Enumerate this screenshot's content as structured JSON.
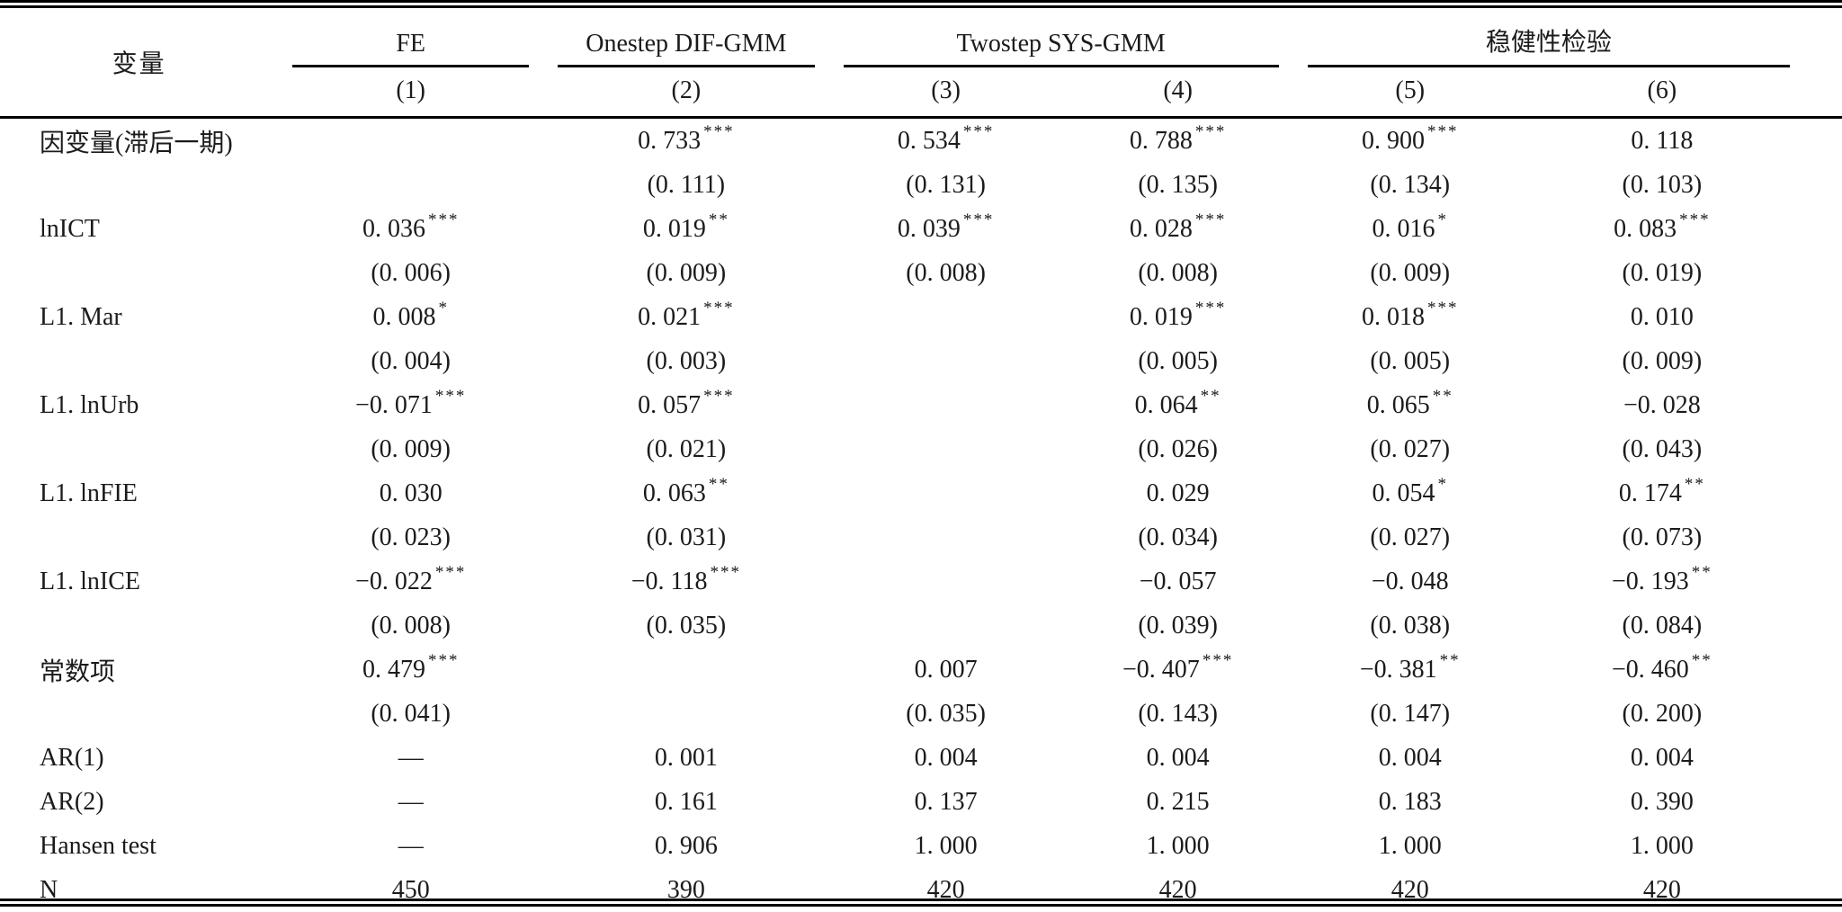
{
  "table": {
    "top_header": {
      "variable_label": "变量",
      "groups": [
        {
          "label": "FE",
          "span": 1
        },
        {
          "label": "Onestep DIF-GMM",
          "span": 1
        },
        {
          "label": "Twostep SYS-GMM",
          "span": 2
        },
        {
          "label": "稳健性检验",
          "span": 2
        }
      ],
      "column_numbers": [
        "(1)",
        "(2)",
        "(3)",
        "(4)",
        "(5)",
        "(6)"
      ]
    },
    "rows": [
      {
        "label": "因变量(滞后一期)",
        "type": "coef",
        "values": [
          "",
          "0. 733***",
          "0. 534***",
          "0. 788***",
          "0. 900***",
          "0. 118"
        ]
      },
      {
        "label": "",
        "type": "se",
        "values": [
          "",
          "(0. 111)",
          "(0. 131)",
          "(0. 135)",
          "(0. 134)",
          "(0. 103)"
        ]
      },
      {
        "label": "lnICT",
        "type": "coef",
        "values": [
          "0. 036***",
          "0. 019**",
          "0. 039***",
          "0. 028***",
          "0. 016*",
          "0. 083***"
        ]
      },
      {
        "label": "",
        "type": "se",
        "values": [
          "(0. 006)",
          "(0. 009)",
          "(0. 008)",
          "(0. 008)",
          "(0. 009)",
          "(0. 019)"
        ]
      },
      {
        "label": "L1. Mar",
        "type": "coef",
        "values": [
          "0. 008*",
          "0. 021***",
          "",
          "0. 019***",
          "0. 018***",
          "0. 010"
        ]
      },
      {
        "label": "",
        "type": "se",
        "values": [
          "(0. 004)",
          "(0. 003)",
          "",
          "(0. 005)",
          "(0. 005)",
          "(0. 009)"
        ]
      },
      {
        "label": "L1. lnUrb",
        "type": "coef",
        "values": [
          "−0. 071***",
          "0. 057***",
          "",
          "0. 064**",
          "0. 065**",
          "−0. 028"
        ]
      },
      {
        "label": "",
        "type": "se",
        "values": [
          "(0. 009)",
          "(0. 021)",
          "",
          "(0. 026)",
          "(0. 027)",
          "(0. 043)"
        ]
      },
      {
        "label": "L1. lnFIE",
        "type": "coef",
        "values": [
          "0. 030",
          "0. 063**",
          "",
          "0. 029",
          "0. 054*",
          "0. 174**"
        ]
      },
      {
        "label": "",
        "type": "se",
        "values": [
          "(0. 023)",
          "(0. 031)",
          "",
          "(0. 034)",
          "(0. 027)",
          "(0. 073)"
        ]
      },
      {
        "label": "L1. lnICE",
        "type": "coef",
        "values": [
          "−0. 022***",
          "−0. 118***",
          "",
          "−0. 057",
          "−0. 048",
          "−0. 193**"
        ]
      },
      {
        "label": "",
        "type": "se",
        "values": [
          "(0. 008)",
          "(0. 035)",
          "",
          "(0. 039)",
          "(0. 038)",
          "(0. 084)"
        ]
      },
      {
        "label": "常数项",
        "type": "coef",
        "values": [
          "0. 479***",
          "",
          "0. 007",
          "−0. 407***",
          "−0. 381**",
          "−0. 460**"
        ]
      },
      {
        "label": "",
        "type": "se",
        "values": [
          "(0. 041)",
          "",
          "(0. 035)",
          "(0. 143)",
          "(0. 147)",
          "(0. 200)"
        ]
      },
      {
        "label": "AR(1)",
        "type": "stat",
        "values": [
          "—",
          "0. 001",
          "0. 004",
          "0. 004",
          "0. 004",
          "0. 004"
        ]
      },
      {
        "label": "AR(2)",
        "type": "stat",
        "values": [
          "—",
          "0. 161",
          "0. 137",
          "0. 215",
          "0. 183",
          "0. 390"
        ]
      },
      {
        "label": "Hansen test",
        "type": "stat",
        "values": [
          "—",
          "0. 906",
          "1. 000",
          "1. 000",
          "1. 000",
          "1. 000"
        ]
      },
      {
        "label": "N",
        "type": "stat",
        "values": [
          "450",
          "390",
          "420",
          "420",
          "420",
          "420"
        ]
      }
    ]
  },
  "colors": {
    "text": "#1b1b1b",
    "rule": "#000000",
    "background": "#ffffff"
  }
}
